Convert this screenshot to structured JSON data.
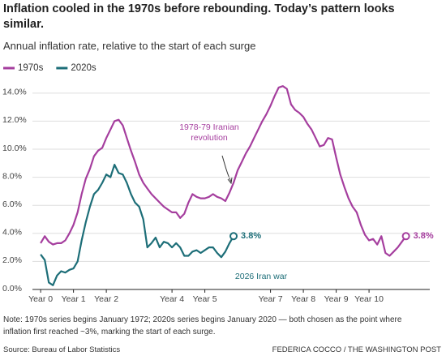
{
  "chart_data": {
    "type": "line",
    "title": "Inflation cooled in the 1970s before rebounding. Today’s pattern looks similar.",
    "subtitle": "Annual inflation rate, relative to the start of each surge",
    "series": [
      {
        "name": "1970s",
        "color": "#a53e9e",
        "x": [
          0,
          0.125,
          0.25,
          0.375,
          0.5,
          0.625,
          0.75,
          0.875,
          1,
          1.125,
          1.25,
          1.375,
          1.5,
          1.625,
          1.75,
          1.875,
          2,
          2.125,
          2.25,
          2.375,
          2.5,
          2.625,
          2.75,
          2.875,
          3,
          3.125,
          3.25,
          3.375,
          3.5,
          3.625,
          3.75,
          3.875,
          4,
          4.125,
          4.25,
          4.375,
          4.5,
          4.625,
          4.75,
          4.875,
          5,
          5.125,
          5.25,
          5.375,
          5.5,
          5.625,
          5.75,
          5.875,
          6,
          6.125,
          6.25,
          6.375,
          6.5,
          6.625,
          6.75,
          6.875,
          7,
          7.125,
          7.25,
          7.375,
          7.5,
          7.625,
          7.75,
          7.875,
          8,
          8.125,
          8.25,
          8.375,
          8.5,
          8.625,
          8.75,
          8.875,
          9,
          9.125,
          9.25,
          9.375,
          9.5,
          9.625,
          9.75,
          9.875,
          10,
          10.125,
          10.25,
          10.375,
          10.5,
          10.625,
          10.75,
          10.875,
          11,
          11.125
        ],
        "values": [
          3.3,
          3.8,
          3.4,
          3.2,
          3.3,
          3.3,
          3.5,
          4.0,
          4.6,
          5.5,
          6.8,
          7.9,
          8.6,
          9.5,
          9.9,
          10.1,
          10.8,
          11.4,
          12.0,
          12.1,
          11.7,
          10.8,
          9.9,
          9.1,
          8.2,
          7.6,
          7.2,
          6.8,
          6.5,
          6.2,
          5.9,
          5.7,
          5.5,
          5.5,
          5.1,
          5.4,
          6.2,
          6.8,
          6.6,
          6.5,
          6.5,
          6.6,
          6.8,
          6.6,
          6.5,
          6.3,
          6.9,
          7.6,
          8.5,
          9.1,
          9.7,
          10.2,
          10.8,
          11.4,
          12.0,
          12.5,
          13.1,
          13.8,
          14.4,
          14.5,
          14.3,
          13.2,
          12.8,
          12.6,
          12.3,
          11.8,
          11.4,
          10.8,
          10.2,
          10.3,
          10.8,
          10.7,
          9.4,
          8.2,
          7.3,
          6.5,
          5.9,
          5.5,
          4.6,
          3.9,
          3.5,
          3.6,
          3.2,
          3.8,
          2.6,
          2.4,
          2.7,
          3.0,
          3.4,
          3.8
        ],
        "value_labels": [
          null,
          null,
          null,
          null,
          null,
          null,
          null,
          null,
          null,
          null,
          null,
          null,
          null,
          null,
          null,
          null,
          null,
          null,
          null,
          null,
          null,
          null,
          null,
          null,
          null,
          null,
          null,
          null,
          null,
          null,
          null,
          null,
          null,
          null,
          null,
          null,
          null,
          null,
          null,
          null,
          null,
          null,
          null,
          null,
          null,
          null,
          null,
          null,
          null,
          null,
          null,
          null,
          null,
          null,
          null,
          null,
          null,
          null,
          null,
          null,
          null,
          null,
          null,
          null,
          null,
          null,
          null,
          null,
          null,
          null,
          null,
          null,
          null,
          null,
          null,
          null,
          null,
          null,
          null,
          null,
          null,
          null,
          null,
          null,
          null,
          null,
          null,
          null,
          null,
          "3.8%"
        ]
      },
      {
        "name": "2020s",
        "color": "#1d6e78",
        "x": [
          0,
          0.125,
          0.25,
          0.375,
          0.5,
          0.625,
          0.75,
          0.875,
          1,
          1.125,
          1.25,
          1.375,
          1.5,
          1.625,
          1.75,
          1.875,
          2,
          2.125,
          2.25,
          2.375,
          2.5,
          2.625,
          2.75,
          2.875,
          3,
          3.125,
          3.25,
          3.375,
          3.5,
          3.625,
          3.75,
          3.875,
          4,
          4.125,
          4.25,
          4.375,
          4.5,
          4.625,
          4.75,
          4.875,
          5,
          5.125,
          5.25,
          5.375,
          5.5,
          5.625,
          5.75,
          5.875
        ],
        "values": [
          2.5,
          2.1,
          0.5,
          0.3,
          1.0,
          1.3,
          1.2,
          1.4,
          1.5,
          2.0,
          3.5,
          4.8,
          5.9,
          6.8,
          7.1,
          7.6,
          8.2,
          8.0,
          8.9,
          8.3,
          8.2,
          7.6,
          6.8,
          6.2,
          5.9,
          5.0,
          3.0,
          3.3,
          3.7,
          3.0,
          3.4,
          3.3,
          3.0,
          3.3,
          3.0,
          2.4,
          2.4,
          2.7,
          2.8,
          2.6,
          2.8,
          3.0,
          3.0,
          2.6,
          2.3,
          2.7,
          3.3,
          3.8
        ],
        "value_labels": [
          null,
          null,
          null,
          null,
          null,
          null,
          null,
          null,
          null,
          null,
          null,
          null,
          null,
          null,
          null,
          null,
          null,
          null,
          null,
          null,
          null,
          null,
          null,
          null,
          null,
          null,
          null,
          null,
          null,
          null,
          null,
          null,
          null,
          null,
          null,
          null,
          null,
          null,
          null,
          null,
          null,
          null,
          null,
          null,
          null,
          null,
          null,
          "3.8%"
        ]
      }
    ],
    "xlim": [
      -0.25,
      11.85
    ],
    "xticks": [
      {
        "value": 0,
        "label": "Year 0"
      },
      {
        "value": 1,
        "label": "Year 1"
      },
      {
        "value": 2,
        "label": "Year 2"
      },
      {
        "value": 4,
        "label": "Year 4"
      },
      {
        "value": 5,
        "label": "Year 5"
      },
      {
        "value": 7,
        "label": "Year 7"
      },
      {
        "value": 8,
        "label": "Year 8"
      },
      {
        "value": 9,
        "label": "Year 9"
      },
      {
        "value": 10,
        "label": "Year 10"
      }
    ],
    "ylim": [
      0,
      14.8
    ],
    "yticks": [
      {
        "value": 0,
        "label": "0.0%"
      },
      {
        "value": 2,
        "label": "2.0%"
      },
      {
        "value": 4,
        "label": "4.0%"
      },
      {
        "value": 6,
        "label": "6.0%"
      },
      {
        "value": 8,
        "label": "8.0%"
      },
      {
        "value": 10,
        "label": "10.0%"
      },
      {
        "value": 12,
        "label": "12.0%"
      },
      {
        "value": 14,
        "label": "14.0%"
      }
    ],
    "grid": true,
    "legend": "top-left",
    "annotations": [
      {
        "lines": [
          "1978-79 Iranian",
          "revolution"
        ]
      },
      {
        "lines": [
          "2026 Iran war"
        ]
      }
    ],
    "note": "Note: 1970s series begins January 1972; 2020s series begins January 2020 — both chosen as the point where inflation first reached ~3%, marking the start of each surge.",
    "source": "Source: Bureau of Labor Statistics",
    "credit": "FEDERICA COCCO / THE WASHINGTON POST"
  }
}
